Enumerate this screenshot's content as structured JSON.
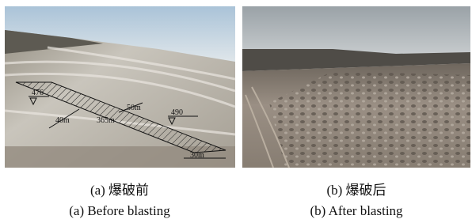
{
  "figure": {
    "panels": [
      {
        "caption_cn": "(a) 爆破前",
        "caption_en": "(a) Before blasting",
        "annotations": [
          "476",
          "40m",
          "365m",
          "50m",
          "490",
          "30m"
        ]
      },
      {
        "caption_cn": "(b) 爆破后",
        "caption_en": "(b) After blasting"
      }
    ]
  }
}
